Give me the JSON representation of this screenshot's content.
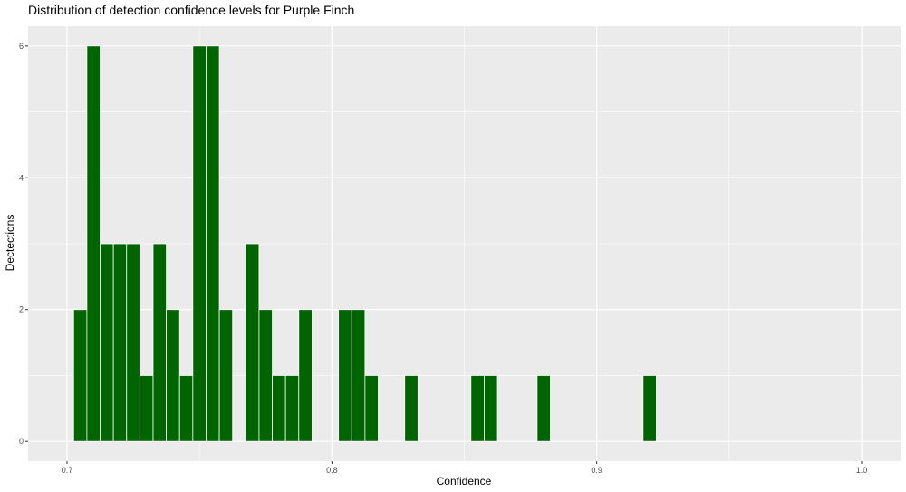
{
  "chart_data": {
    "type": "bar",
    "title": "Distribution of detection confidence levels for Purple Finch",
    "xlabel": "Confidence",
    "ylabel": "Dectections",
    "xlim": [
      0.6853,
      1.0147
    ],
    "ylim": [
      -0.3,
      6.3
    ],
    "x_ticks": [
      0.7,
      0.8,
      0.9,
      1.0
    ],
    "x_tick_labels": [
      "0.7",
      "0.8",
      "0.9",
      "1.0"
    ],
    "y_ticks": [
      0,
      2,
      4,
      6
    ],
    "y_tick_labels": [
      "0",
      "2",
      "4",
      "6"
    ],
    "bin_width": 0.005,
    "bins": [
      {
        "x": 0.705,
        "count": 2
      },
      {
        "x": 0.71,
        "count": 6
      },
      {
        "x": 0.715,
        "count": 3
      },
      {
        "x": 0.72,
        "count": 3
      },
      {
        "x": 0.725,
        "count": 3
      },
      {
        "x": 0.73,
        "count": 1
      },
      {
        "x": 0.735,
        "count": 3
      },
      {
        "x": 0.74,
        "count": 2
      },
      {
        "x": 0.745,
        "count": 1
      },
      {
        "x": 0.75,
        "count": 6
      },
      {
        "x": 0.755,
        "count": 6
      },
      {
        "x": 0.76,
        "count": 2
      },
      {
        "x": 0.77,
        "count": 3
      },
      {
        "x": 0.775,
        "count": 2
      },
      {
        "x": 0.78,
        "count": 1
      },
      {
        "x": 0.785,
        "count": 1
      },
      {
        "x": 0.79,
        "count": 2
      },
      {
        "x": 0.805,
        "count": 2
      },
      {
        "x": 0.81,
        "count": 2
      },
      {
        "x": 0.815,
        "count": 1
      },
      {
        "x": 0.83,
        "count": 1
      },
      {
        "x": 0.855,
        "count": 1
      },
      {
        "x": 0.86,
        "count": 1
      },
      {
        "x": 0.88,
        "count": 1
      },
      {
        "x": 0.92,
        "count": 1
      }
    ],
    "grid": true,
    "bar_color": "#006400",
    "panel_background": "#ebebeb",
    "grid_color": "#ffffff"
  }
}
